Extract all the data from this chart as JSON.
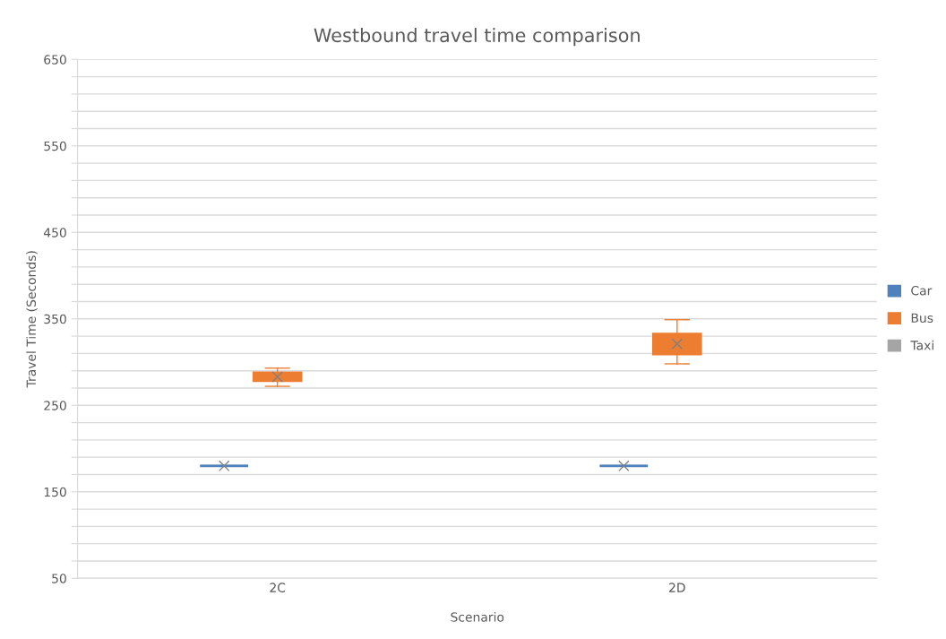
{
  "chart_data": {
    "type": "box",
    "title": "Westbound travel time comparison",
    "xlabel": "Scenario",
    "ylabel": "Travel Time (Seconds)",
    "categories": [
      "2C",
      "2D"
    ],
    "series": [
      {
        "name": "Car",
        "color": "#4f81bd",
        "boxes": [
          {
            "low": 180,
            "q1": 180,
            "median": 180,
            "q3": 180,
            "high": 180,
            "mean": 180
          },
          {
            "low": 180,
            "q1": 180,
            "median": 180,
            "q3": 180,
            "high": 180,
            "mean": 180
          }
        ]
      },
      {
        "name": "Bus",
        "color": "#ed7d31",
        "boxes": [
          {
            "low": 272,
            "q1": 278,
            "median": 283,
            "q3": 288,
            "high": 293,
            "mean": 283
          },
          {
            "low": 298,
            "q1": 309,
            "median": 318,
            "q3": 333,
            "high": 349,
            "mean": 321
          }
        ]
      },
      {
        "name": "Taxi",
        "color": "#a5a5a5",
        "boxes": [
          null,
          null
        ]
      }
    ],
    "ylim": [
      50,
      650
    ],
    "yticks": [
      50,
      {
        "value": 70,
        "label": null
      },
      {
        "value": 90,
        "label": null
      },
      {
        "value": 110,
        "label": null
      },
      {
        "value": 130,
        "label": null
      },
      150,
      {
        "value": 170,
        "label": null
      },
      {
        "value": 190,
        "label": null
      },
      {
        "value": 210,
        "label": null
      },
      {
        "value": 230,
        "label": null
      },
      250,
      {
        "value": 270,
        "label": null
      },
      {
        "value": 290,
        "label": null
      },
      {
        "value": 310,
        "label": null
      },
      {
        "value": 330,
        "label": null
      },
      350,
      {
        "value": 370,
        "label": null
      },
      {
        "value": 390,
        "label": null
      },
      {
        "value": 410,
        "label": null
      },
      {
        "value": 430,
        "label": null
      },
      450,
      {
        "value": 470,
        "label": null
      },
      {
        "value": 490,
        "label": null
      },
      {
        "value": 510,
        "label": null
      },
      {
        "value": 530,
        "label": null
      },
      550,
      {
        "value": 570,
        "label": null
      },
      {
        "value": 590,
        "label": null
      },
      {
        "value": 610,
        "label": null
      },
      {
        "value": 630,
        "label": null
      },
      650
    ],
    "grid": "y",
    "legend": "right"
  }
}
